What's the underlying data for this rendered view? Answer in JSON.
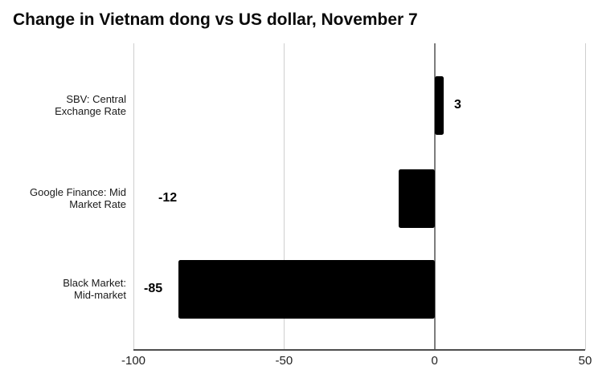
{
  "chart_data": {
    "type": "bar",
    "orientation": "horizontal",
    "title": "Change in Vietnam dong vs US dollar, November 7",
    "categories": [
      [
        "SBV: Central",
        "Exchange Rate"
      ],
      [
        "Google Finance: Mid",
        "Market Rate"
      ],
      [
        "Black Market:",
        "Mid-market"
      ]
    ],
    "values": [
      3,
      -12,
      -85
    ],
    "value_labels": [
      "3",
      "-12",
      "-85"
    ],
    "xlabel": "",
    "ylabel": "",
    "xlim": [
      -100,
      50
    ],
    "x_ticks": [
      -100,
      -50,
      0,
      50
    ],
    "x_tick_labels": [
      "-100",
      "-50",
      "0",
      "50"
    ],
    "grid": "vertical gridlines at each x tick, zero line emphasized",
    "legend": "none",
    "bar_color": "#000000"
  },
  "colors": {
    "background": "#ffffff",
    "bar": "#000000",
    "gridline": "#cfcfcf",
    "zero_line": "#7d7d7d",
    "axis_line": "#4d4d4d",
    "title_text": "#0a0a0a",
    "category_text": "#1a1a1a",
    "tick_text": "#222222",
    "value_text": "#000000"
  }
}
